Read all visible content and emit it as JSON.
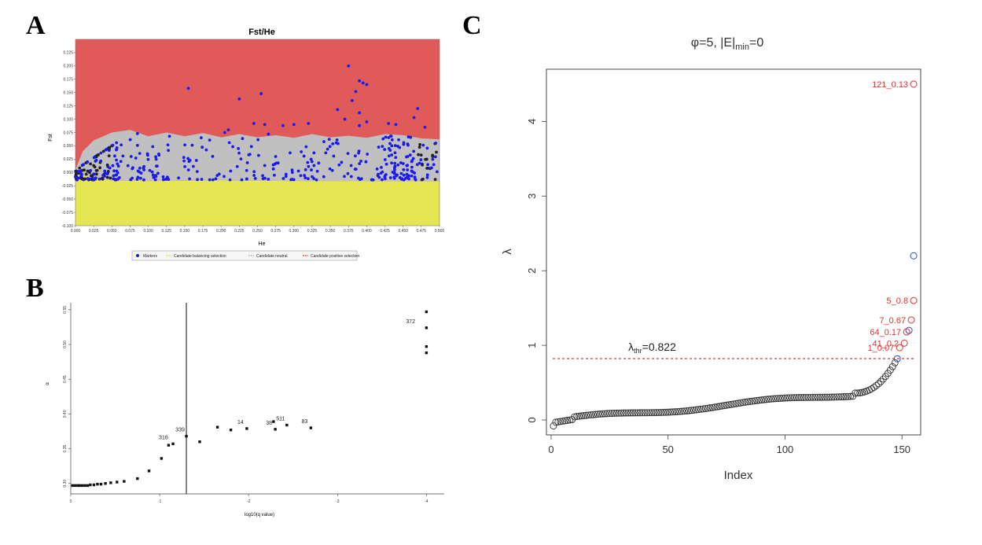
{
  "panels": {
    "a": "A",
    "b": "B",
    "c": "C"
  },
  "chart_data": [
    {
      "id": "A",
      "type": "scatter",
      "title": "Fst/He",
      "xlabel": "He",
      "ylabel": "Fst",
      "xlim": [
        0.0,
        0.5
      ],
      "ylim": [
        -0.1,
        0.25
      ],
      "xticks": [
        "0.000",
        "0.025",
        "0.050",
        "0.075",
        "0.100",
        "0.125",
        "0.150",
        "0.175",
        "0.200",
        "0.225",
        "0.250",
        "0.275",
        "0.300",
        "0.325",
        "0.350",
        "0.375",
        "0.400",
        "0.425",
        "0.450",
        "0.475",
        "0.500"
      ],
      "yticks": [
        "-0.100",
        "-0.075",
        "-0.050",
        "-0.025",
        "0.000",
        "0.025",
        "0.050",
        "0.075",
        "0.100",
        "0.125",
        "0.150",
        "0.175",
        "0.200",
        "0.225"
      ],
      "region_colors": {
        "positive": "#e05a5a",
        "neutral": "#c0c0c0",
        "balancing": "#e6e653"
      },
      "neutral_upper": [
        [
          0.0,
          0.005
        ],
        [
          0.01,
          0.04
        ],
        [
          0.025,
          0.06
        ],
        [
          0.05,
          0.075
        ],
        [
          0.075,
          0.08
        ],
        [
          0.1,
          0.068
        ],
        [
          0.125,
          0.075
        ],
        [
          0.15,
          0.068
        ],
        [
          0.175,
          0.074
        ],
        [
          0.2,
          0.066
        ],
        [
          0.225,
          0.072
        ],
        [
          0.25,
          0.066
        ],
        [
          0.275,
          0.07
        ],
        [
          0.3,
          0.065
        ],
        [
          0.325,
          0.072
        ],
        [
          0.35,
          0.066
        ],
        [
          0.375,
          0.069
        ],
        [
          0.4,
          0.065
        ],
        [
          0.425,
          0.072
        ],
        [
          0.45,
          0.07
        ],
        [
          0.475,
          0.064
        ],
        [
          0.5,
          0.062
        ]
      ],
      "neutral_lower": [
        [
          0.0,
          0.005
        ],
        [
          0.01,
          -0.005
        ],
        [
          0.025,
          -0.01
        ],
        [
          0.05,
          -0.015
        ],
        [
          0.1,
          -0.016
        ],
        [
          0.2,
          -0.015
        ],
        [
          0.3,
          -0.016
        ],
        [
          0.4,
          -0.016
        ],
        [
          0.5,
          -0.017
        ]
      ],
      "outlier_points": [
        [
          0.155,
          0.158
        ],
        [
          0.225,
          0.138
        ],
        [
          0.255,
          0.148
        ],
        [
          0.375,
          0.2
        ],
        [
          0.39,
          0.172
        ],
        [
          0.395,
          0.168
        ],
        [
          0.4,
          0.165
        ],
        [
          0.385,
          0.152
        ],
        [
          0.38,
          0.135
        ],
        [
          0.36,
          0.118
        ],
        [
          0.39,
          0.112
        ],
        [
          0.37,
          0.1
        ],
        [
          0.4,
          0.095
        ],
        [
          0.43,
          0.092
        ],
        [
          0.44,
          0.09
        ],
        [
          0.47,
          0.12
        ],
        [
          0.465,
          0.103
        ],
        [
          0.32,
          0.092
        ],
        [
          0.3,
          0.09
        ],
        [
          0.285,
          0.088
        ],
        [
          0.245,
          0.092
        ],
        [
          0.26,
          0.09
        ],
        [
          0.265,
          0.072
        ],
        [
          0.21,
          0.08
        ],
        [
          0.205,
          0.075
        ],
        [
          0.39,
          0.088
        ],
        [
          0.48,
          0.085
        ]
      ],
      "legend": [
        "Markers",
        "Candidate balancing selection",
        "Candidate neutral",
        "Candidate positive selection"
      ]
    },
    {
      "id": "B",
      "type": "scatter",
      "xlabel": "log10(q value)",
      "ylabel": "α",
      "xticks": [
        "0",
        "-1",
        "-2",
        "-3",
        "-4"
      ],
      "yticks": [
        "0.30",
        "0.35",
        "0.40",
        "0.45",
        "0.50",
        "0.55"
      ],
      "xlim": [
        0,
        -4.2
      ],
      "ylim": [
        0.285,
        0.56
      ],
      "threshold_x": -1.3,
      "points": [
        [
          -0.02,
          0.297
        ],
        [
          -0.05,
          0.297
        ],
        [
          -0.08,
          0.297
        ],
        [
          -0.1,
          0.297
        ],
        [
          -0.13,
          0.297
        ],
        [
          -0.16,
          0.297
        ],
        [
          -0.19,
          0.297
        ],
        [
          -0.22,
          0.298
        ],
        [
          -0.26,
          0.298
        ],
        [
          -0.3,
          0.299
        ],
        [
          -0.34,
          0.299
        ],
        [
          -0.39,
          0.3
        ],
        [
          -0.45,
          0.301
        ],
        [
          -0.52,
          0.302
        ],
        [
          -0.6,
          0.303
        ],
        [
          -0.75,
          0.307
        ],
        [
          -0.88,
          0.318
        ],
        [
          -1.02,
          0.336
        ],
        [
          -1.1,
          0.355
        ],
        [
          -1.15,
          0.357
        ],
        [
          -1.3,
          0.368
        ],
        [
          -1.45,
          0.36
        ],
        [
          -1.65,
          0.381
        ],
        [
          -1.8,
          0.377
        ],
        [
          -1.98,
          0.379
        ],
        [
          -2.28,
          0.389
        ],
        [
          -2.3,
          0.378
        ],
        [
          -2.43,
          0.384
        ],
        [
          -2.7,
          0.38
        ],
        [
          -4.0,
          0.547
        ],
        [
          -4.0,
          0.524
        ],
        [
          -4.0,
          0.497
        ],
        [
          -4.0,
          0.488
        ]
      ],
      "labels": [
        {
          "text": "316",
          "x": -1.15,
          "y": 0.357
        },
        {
          "text": "339",
          "x": -1.3,
          "y": 0.368
        },
        {
          "text": "14",
          "x": -1.98,
          "y": 0.379
        },
        {
          "text": "511",
          "x": -2.43,
          "y": 0.384
        },
        {
          "text": "83",
          "x": -2.7,
          "y": 0.38
        },
        {
          "text": "372",
          "x": -4.0,
          "y": 0.524
        },
        {
          "text": "38",
          "x": -2.3,
          "y": 0.378
        }
      ]
    },
    {
      "id": "C",
      "type": "scatter",
      "title_html": "φ=5,  |E|<sub>min</sub>=0",
      "xlabel": "Index",
      "ylabel": "λ",
      "xticks": [
        0,
        50,
        100,
        150
      ],
      "yticks": [
        0,
        1,
        2,
        3,
        4
      ],
      "xlim": [
        -2,
        158
      ],
      "ylim": [
        -0.2,
        4.7
      ],
      "n_points": 155,
      "threshold": 0.822,
      "threshold_label": "λ",
      "threshold_sub": "thr",
      "threshold_value": "=0.822",
      "colors": {
        "default": "#333333",
        "red": "#e03030",
        "blue": "#3344cc"
      },
      "special_points": [
        {
          "index": 155,
          "value": 4.5,
          "color": "red",
          "label": "121_0.13"
        },
        {
          "index": 155,
          "value": 2.2,
          "color": "blue",
          "label": ""
        },
        {
          "index": 155,
          "value": 1.6,
          "color": "red",
          "label": "5_0.8"
        },
        {
          "index": 154,
          "value": 1.34,
          "color": "red",
          "label": "7_0.67"
        },
        {
          "index": 153,
          "value": 1.2,
          "color": "blue",
          "label": ""
        },
        {
          "index": 152,
          "value": 1.18,
          "color": "red",
          "label": "64_0.17"
        },
        {
          "index": 151,
          "value": 1.03,
          "color": "red",
          "label": "41_0.2"
        },
        {
          "index": 149,
          "value": 0.97,
          "color": "red",
          "label": "1_0.07"
        },
        {
          "index": 148,
          "value": 0.82,
          "color": "blue",
          "label": ""
        }
      ]
    }
  ]
}
